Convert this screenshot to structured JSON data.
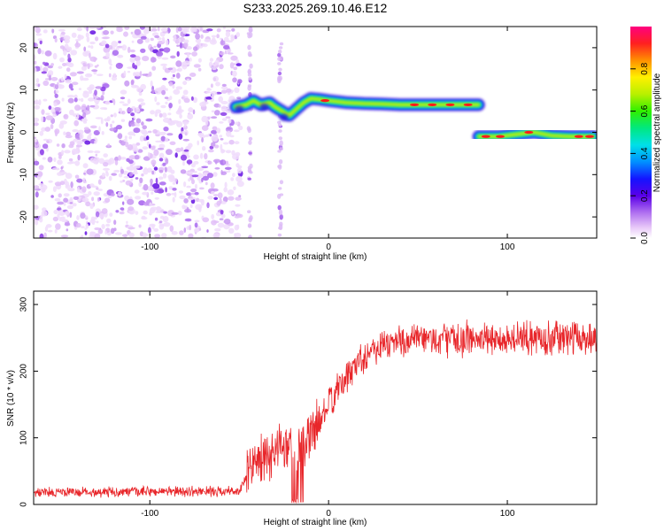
{
  "title": "S233.2025.269.10.46.E12",
  "chart_data": [
    {
      "type": "heatmap",
      "title": "S233.2025.269.10.46.E12",
      "xlabel": "Height of straight line (km)",
      "ylabel": "Frequency (Hz)",
      "xlim": [
        -165,
        150
      ],
      "ylim": [
        -25,
        25
      ],
      "xticks": [
        -100,
        0,
        100
      ],
      "yticks": [
        -20,
        -10,
        0,
        10,
        20
      ],
      "noise_region_x": [
        -165,
        -52
      ],
      "vertical_stripes_x": [
        -44,
        -27
      ],
      "colorbar": {
        "label": "Normalized spectral amplitude",
        "range": [
          0,
          1
        ],
        "ticks": [
          0.0,
          0.2,
          0.4,
          0.6,
          0.8
        ]
      },
      "ridge": [
        {
          "x": -52,
          "y": 6.0
        },
        {
          "x": -46,
          "y": 6.5
        },
        {
          "x": -42,
          "y": 7.5
        },
        {
          "x": -38,
          "y": 6.5
        },
        {
          "x": -33,
          "y": 7.0
        },
        {
          "x": -30,
          "y": 6.0
        },
        {
          "x": -26,
          "y": 5.0
        },
        {
          "x": -22,
          "y": 4.0
        },
        {
          "x": -18,
          "y": 5.5
        },
        {
          "x": -14,
          "y": 7.0
        },
        {
          "x": -10,
          "y": 8.0
        },
        {
          "x": -5,
          "y": 7.8
        },
        {
          "x": 0,
          "y": 7.5
        },
        {
          "x": 10,
          "y": 7.0
        },
        {
          "x": 20,
          "y": 6.8
        },
        {
          "x": 30,
          "y": 6.7
        },
        {
          "x": 40,
          "y": 6.5
        },
        {
          "x": 50,
          "y": 6.5
        },
        {
          "x": 60,
          "y": 6.5
        },
        {
          "x": 70,
          "y": 6.5
        },
        {
          "x": 84,
          "y": 6.5
        },
        {
          "x": 84,
          "y": -1.0
        },
        {
          "x": 95,
          "y": -1.0
        },
        {
          "x": 105,
          "y": -0.5
        },
        {
          "x": 115,
          "y": 0.0
        },
        {
          "x": 125,
          "y": -0.8
        },
        {
          "x": 135,
          "y": -1.0
        },
        {
          "x": 148,
          "y": -1.0
        }
      ]
    },
    {
      "type": "line",
      "xlabel": "Height of straight line (km)",
      "ylabel": "SNR (10 * v/v)",
      "xlim": [
        -165,
        150
      ],
      "ylim": [
        0,
        320
      ],
      "xticks": [
        -100,
        0,
        100
      ],
      "yticks": [
        0,
        100,
        200,
        300
      ],
      "series_color": "#e8262a",
      "trend": [
        {
          "x": -165,
          "y": 18
        },
        {
          "x": -50,
          "y": 20
        },
        {
          "x": -45,
          "y": 45
        },
        {
          "x": -40,
          "y": 70
        },
        {
          "x": -35,
          "y": 60
        },
        {
          "x": -30,
          "y": 85
        },
        {
          "x": -25,
          "y": 90
        },
        {
          "x": -20,
          "y": 88
        },
        {
          "x": -15,
          "y": 80
        },
        {
          "x": -10,
          "y": 105
        },
        {
          "x": -5,
          "y": 125
        },
        {
          "x": 0,
          "y": 150
        },
        {
          "x": 5,
          "y": 170
        },
        {
          "x": 10,
          "y": 190
        },
        {
          "x": 15,
          "y": 210
        },
        {
          "x": 20,
          "y": 225
        },
        {
          "x": 30,
          "y": 240
        },
        {
          "x": 40,
          "y": 245
        },
        {
          "x": 60,
          "y": 248
        },
        {
          "x": 80,
          "y": 248
        },
        {
          "x": 100,
          "y": 248
        },
        {
          "x": 120,
          "y": 250
        },
        {
          "x": 150,
          "y": 250
        }
      ]
    }
  ]
}
